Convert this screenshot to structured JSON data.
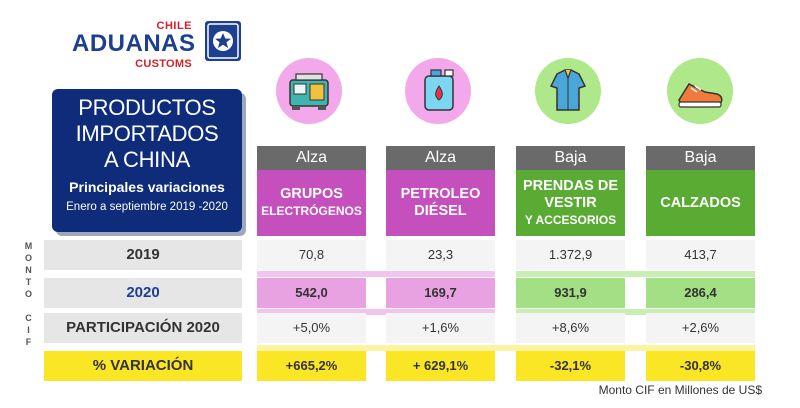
{
  "logo": {
    "top": "CHILE",
    "main": "ADUANAS",
    "bottom": "CUSTOMS"
  },
  "title": {
    "line1": "PRODUCTOS",
    "line2": "IMPORTADOS",
    "line3": "A CHINA",
    "subtitle": "Principales variaciones",
    "period": "Enero a  septiembre 2019 -2020"
  },
  "side_label": [
    "M",
    "O",
    "N",
    "T",
    "O",
    "",
    "C",
    "I",
    "F"
  ],
  "rows": {
    "y2019": "2019",
    "y2020": "2020",
    "share": "PARTICIPACIÓN 2020",
    "variation": "% VARIACIÓN"
  },
  "products": [
    {
      "trend": "Alza",
      "name_big": "GRUPOS",
      "name_small": "ELECTRÓGENOS",
      "icon": "generator-icon",
      "v2019": "70,8",
      "v2020": "542,0",
      "share": "+5,0%",
      "variation": "+665,2%"
    },
    {
      "trend": "Alza",
      "name_big": "PETROLEO",
      "name_small": "DIÉSEL",
      "icon": "fuel-can-icon",
      "v2019": "23,3",
      "v2020": "169,7",
      "share": "+1,6%",
      "variation": "+ 629,1%"
    },
    {
      "trend": "Baja",
      "name_big": "PRENDAS DE VESTIR",
      "name_small": "Y ACCESORIOS",
      "icon": "shirt-icon",
      "v2019": "1.372,9",
      "v2020": "931,9",
      "share": "+8,6%",
      "variation": "-32,1%"
    },
    {
      "trend": "Baja",
      "name_big": "CALZADOS",
      "name_small": "",
      "icon": "sneaker-icon",
      "v2019": "413,7",
      "v2020": "286,4",
      "share": "+2,6%",
      "variation": "-30,8%"
    }
  ],
  "footnote": "Monto CIF en Millones de US$",
  "colors": {
    "navy": "#0f2c7a",
    "pink": "#c54fbd",
    "green": "#5aab33",
    "yellow": "#fbe625",
    "red": "#d4202a"
  }
}
